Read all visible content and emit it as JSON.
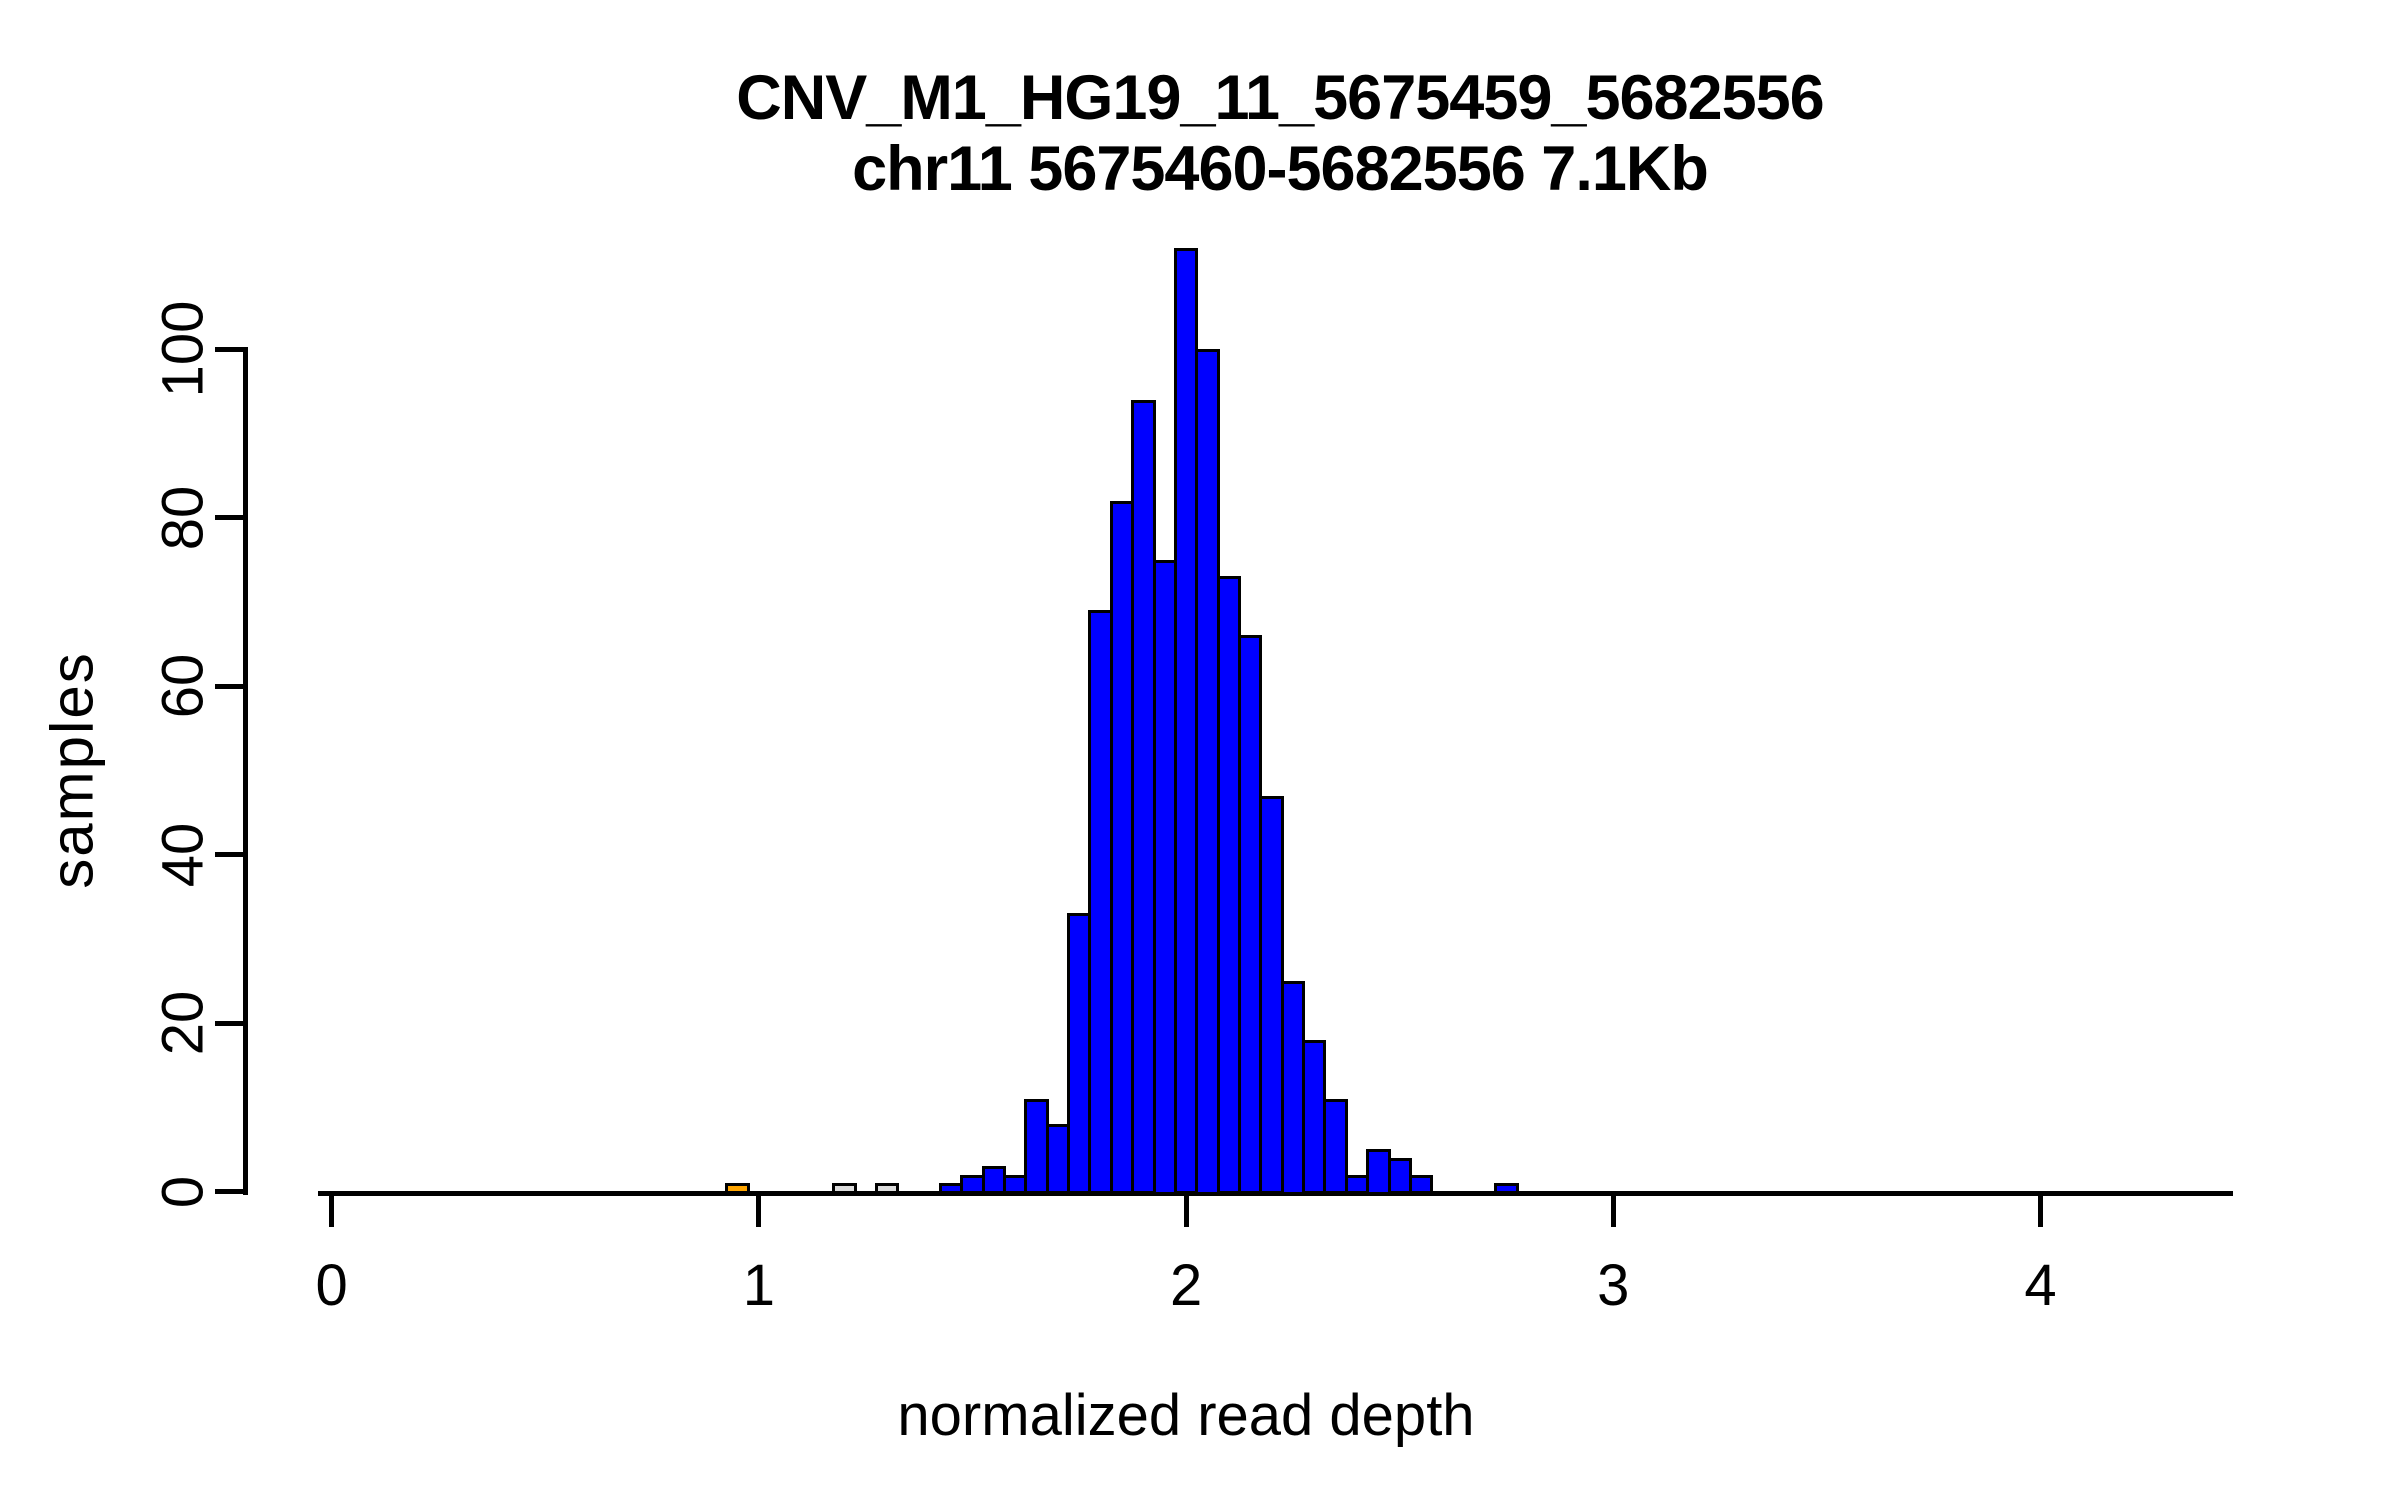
{
  "page": {
    "background": "#FFFFFF",
    "kind": "R histogram plot"
  },
  "chart_data": {
    "type": "bar",
    "title": "CNV_M1_HG19_11_5675459_5682556",
    "subtitle": "chr11 5675460-5682556 7.1Kb",
    "xlabel": "normalized read depth",
    "ylabel": "samples",
    "x_ticks": [
      0,
      1,
      2,
      3,
      4
    ],
    "y_ticks": [
      0,
      20,
      40,
      60,
      80,
      100
    ],
    "xlim": [
      -0.03,
      4.45
    ],
    "ylim": [
      0,
      112
    ],
    "grid": false,
    "legend": "none",
    "bin_width": 0.05,
    "bar_border_color": "#000000",
    "colors": {
      "normal": "#0000FF",
      "low_outlier": "#FFA500",
      "flagged": "#DCDCDC"
    },
    "bars": [
      {
        "start": 0.925,
        "count": 1,
        "color": "#FFA500"
      },
      {
        "start": 1.175,
        "count": 1,
        "color": "#DCDCDC"
      },
      {
        "start": 1.275,
        "count": 1,
        "color": "#DCDCDC"
      },
      {
        "start": 1.425,
        "count": 1,
        "color": "#0000FF"
      },
      {
        "start": 1.475,
        "count": 2,
        "color": "#0000FF"
      },
      {
        "start": 1.525,
        "count": 3,
        "color": "#0000FF"
      },
      {
        "start": 1.575,
        "count": 2,
        "color": "#0000FF"
      },
      {
        "start": 1.625,
        "count": 11,
        "color": "#0000FF"
      },
      {
        "start": 1.675,
        "count": 8,
        "color": "#0000FF"
      },
      {
        "start": 1.725,
        "count": 33,
        "color": "#0000FF"
      },
      {
        "start": 1.775,
        "count": 69,
        "color": "#0000FF"
      },
      {
        "start": 1.825,
        "count": 82,
        "color": "#0000FF"
      },
      {
        "start": 1.875,
        "count": 94,
        "color": "#0000FF"
      },
      {
        "start": 1.925,
        "count": 75,
        "color": "#0000FF"
      },
      {
        "start": 1.975,
        "count": 112,
        "color": "#0000FF"
      },
      {
        "start": 2.025,
        "count": 100,
        "color": "#0000FF"
      },
      {
        "start": 2.075,
        "count": 73,
        "color": "#0000FF"
      },
      {
        "start": 2.125,
        "count": 66,
        "color": "#0000FF"
      },
      {
        "start": 2.175,
        "count": 47,
        "color": "#0000FF"
      },
      {
        "start": 2.225,
        "count": 25,
        "color": "#0000FF"
      },
      {
        "start": 2.275,
        "count": 18,
        "color": "#0000FF"
      },
      {
        "start": 2.325,
        "count": 11,
        "color": "#0000FF"
      },
      {
        "start": 2.375,
        "count": 2,
        "color": "#0000FF"
      },
      {
        "start": 2.425,
        "count": 5,
        "color": "#0000FF"
      },
      {
        "start": 2.475,
        "count": 4,
        "color": "#0000FF"
      },
      {
        "start": 2.525,
        "count": 2,
        "color": "#0000FF"
      },
      {
        "start": 2.725,
        "count": 1,
        "color": "#0000FF"
      }
    ]
  }
}
